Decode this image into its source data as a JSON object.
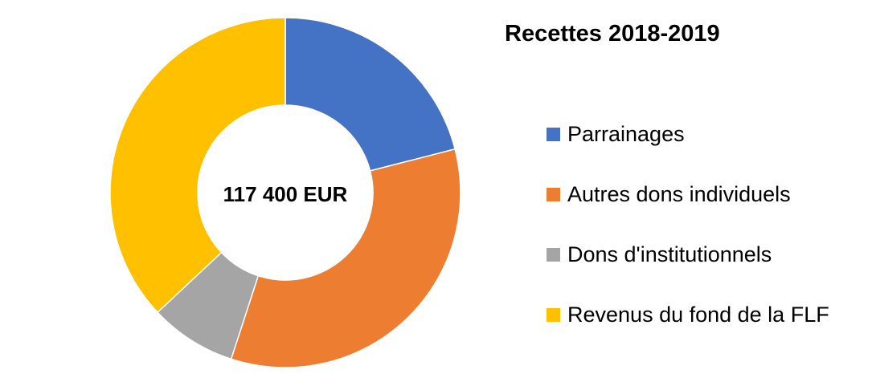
{
  "chart_data": {
    "type": "pie",
    "variant": "donut",
    "title": "Recettes 2018-2019",
    "center_label": "117 400 EUR",
    "legend_position": "right",
    "categories": [
      "Parrainages",
      "Autres dons individuels",
      "Dons d'institutionnels",
      "Revenus du fond de la FLF"
    ],
    "values": [
      21,
      34,
      8,
      37
    ],
    "unit": "%",
    "colors": [
      "#4472C4",
      "#ED7D31",
      "#A5A5A5",
      "#FFC000"
    ]
  }
}
